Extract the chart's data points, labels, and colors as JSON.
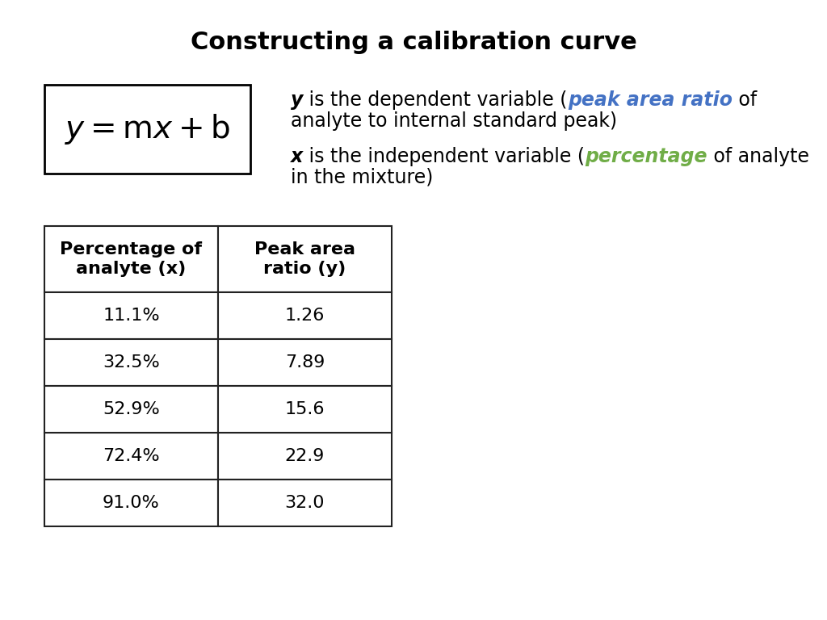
{
  "title": "Constructing a calibration curve",
  "title_fontsize": 22,
  "title_fontweight": "bold",
  "background_color": "#ffffff",
  "blue_color": "#4472C4",
  "green_color": "#70AD47",
  "table_headers": [
    "Percentage of\nanalyte (x)",
    "Peak area\nratio (y)"
  ],
  "table_data": [
    [
      "11.1%",
      "1.26"
    ],
    [
      "32.5%",
      "7.89"
    ],
    [
      "52.9%",
      "15.6"
    ],
    [
      "72.4%",
      "22.9"
    ],
    [
      "91.0%",
      "32.0"
    ]
  ]
}
